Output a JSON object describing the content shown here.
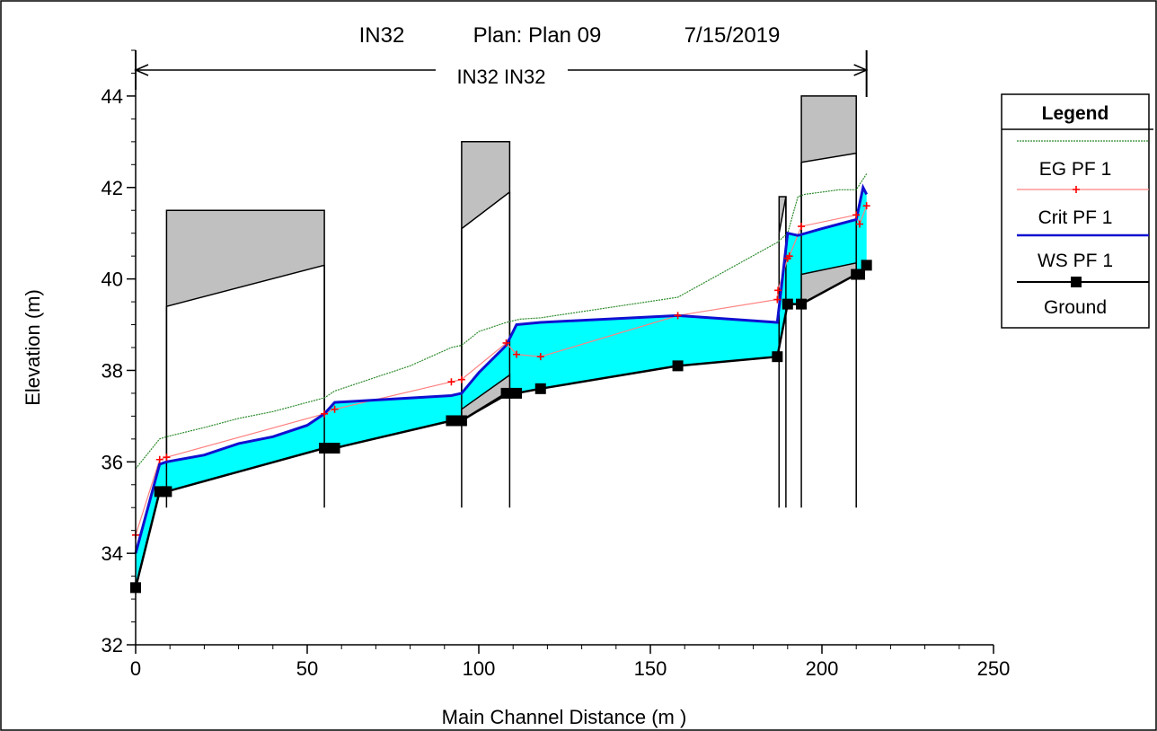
{
  "title": {
    "name": "IN32",
    "plan": "Plan: Plan 09",
    "date": "7/15/2019"
  },
  "reach_label": "IN32 IN32",
  "colors": {
    "eg": "#2e8b2e",
    "crit": "#ff0000",
    "crit_line": "#ff8080",
    "ws": "#1010d0",
    "water": "#00ffff",
    "ground": "#000000",
    "structure": "#c0c0c0"
  },
  "chart_data": {
    "type": "line",
    "xlabel": "Main Channel Distance (m )",
    "ylabel": "Elevation (m)",
    "xlim": [
      0,
      250
    ],
    "ylim": [
      32,
      45
    ],
    "xticks": [
      0,
      50,
      100,
      150,
      200,
      250
    ],
    "yticks": [
      32,
      34,
      36,
      38,
      40,
      42,
      44
    ],
    "legend": {
      "title": "Legend",
      "position": "right",
      "entries": [
        "EG  PF 1",
        "Crit  PF 1",
        "WS  PF 1",
        "Ground"
      ]
    },
    "reach_extent": [
      0,
      213
    ],
    "series": [
      {
        "name": "EG  PF 1",
        "x": [
          0,
          7,
          9,
          20,
          30,
          40,
          50,
          55,
          58,
          70,
          80,
          92,
          95,
          100,
          108,
          112,
          118,
          158,
          187,
          190,
          193,
          195,
          200,
          205,
          210,
          213
        ],
        "y": [
          35.85,
          36.5,
          36.55,
          36.75,
          36.95,
          37.1,
          37.3,
          37.4,
          37.55,
          37.85,
          38.1,
          38.5,
          38.55,
          38.85,
          39.05,
          39.12,
          39.15,
          39.6,
          40.8,
          41.0,
          41.8,
          41.85,
          41.9,
          41.95,
          41.95,
          42.3
        ]
      },
      {
        "name": "Crit  PF 1",
        "x": [
          0,
          7,
          9,
          55,
          58,
          92,
          95,
          108,
          111,
          118,
          158,
          187,
          187.2,
          190,
          190.5,
          194,
          210,
          211,
          213
        ],
        "y": [
          34.4,
          36.05,
          36.1,
          37.05,
          37.15,
          37.75,
          37.8,
          38.6,
          38.35,
          38.3,
          39.2,
          39.55,
          39.75,
          40.45,
          40.5,
          41.15,
          41.4,
          41.2,
          41.6
        ]
      },
      {
        "name": "WS  PF 1",
        "x": [
          0,
          7,
          9,
          20,
          30,
          40,
          50,
          55,
          58,
          92,
          95,
          100,
          108,
          111,
          118,
          158,
          187,
          188,
          190,
          193,
          200,
          210,
          212,
          213
        ],
        "y": [
          34.0,
          35.95,
          36.0,
          36.15,
          36.4,
          36.55,
          36.8,
          37.05,
          37.3,
          37.45,
          37.5,
          37.95,
          38.55,
          39.0,
          39.05,
          39.2,
          39.05,
          39.7,
          41.0,
          40.95,
          41.1,
          41.3,
          42.0,
          41.85
        ]
      },
      {
        "name": "Ground",
        "x": [
          0,
          7,
          9,
          55,
          58,
          92,
          95,
          108,
          111,
          118,
          158,
          187,
          190,
          194,
          210,
          211,
          213
        ],
        "y": [
          33.25,
          35.35,
          35.35,
          36.3,
          36.3,
          36.9,
          36.9,
          37.5,
          37.5,
          37.6,
          38.1,
          38.3,
          39.45,
          39.45,
          40.1,
          40.1,
          40.3
        ]
      }
    ],
    "structures": [
      {
        "x": [
          9,
          55
        ],
        "top": 41.5,
        "low_chord": [
          39.4,
          40.3
        ]
      },
      {
        "x": [
          95,
          109
        ],
        "top": 43.0,
        "low_chord": [
          41.1,
          41.9
        ]
      },
      {
        "x": [
          187.5,
          189.5
        ],
        "top": 41.8,
        "low_chord": [
          41.0,
          41.8
        ]
      },
      {
        "x": [
          194,
          210
        ],
        "top": 44.0,
        "low_chord": [
          42.55,
          42.75
        ]
      }
    ],
    "culverts": [
      {
        "x": [
          95,
          109
        ],
        "top": [
          37.15,
          37.9
        ],
        "bottom": [
          36.9,
          37.5
        ]
      },
      {
        "x": [
          194,
          210
        ],
        "top": [
          40.1,
          40.35
        ],
        "bottom": [
          39.45,
          40.1
        ]
      }
    ]
  }
}
